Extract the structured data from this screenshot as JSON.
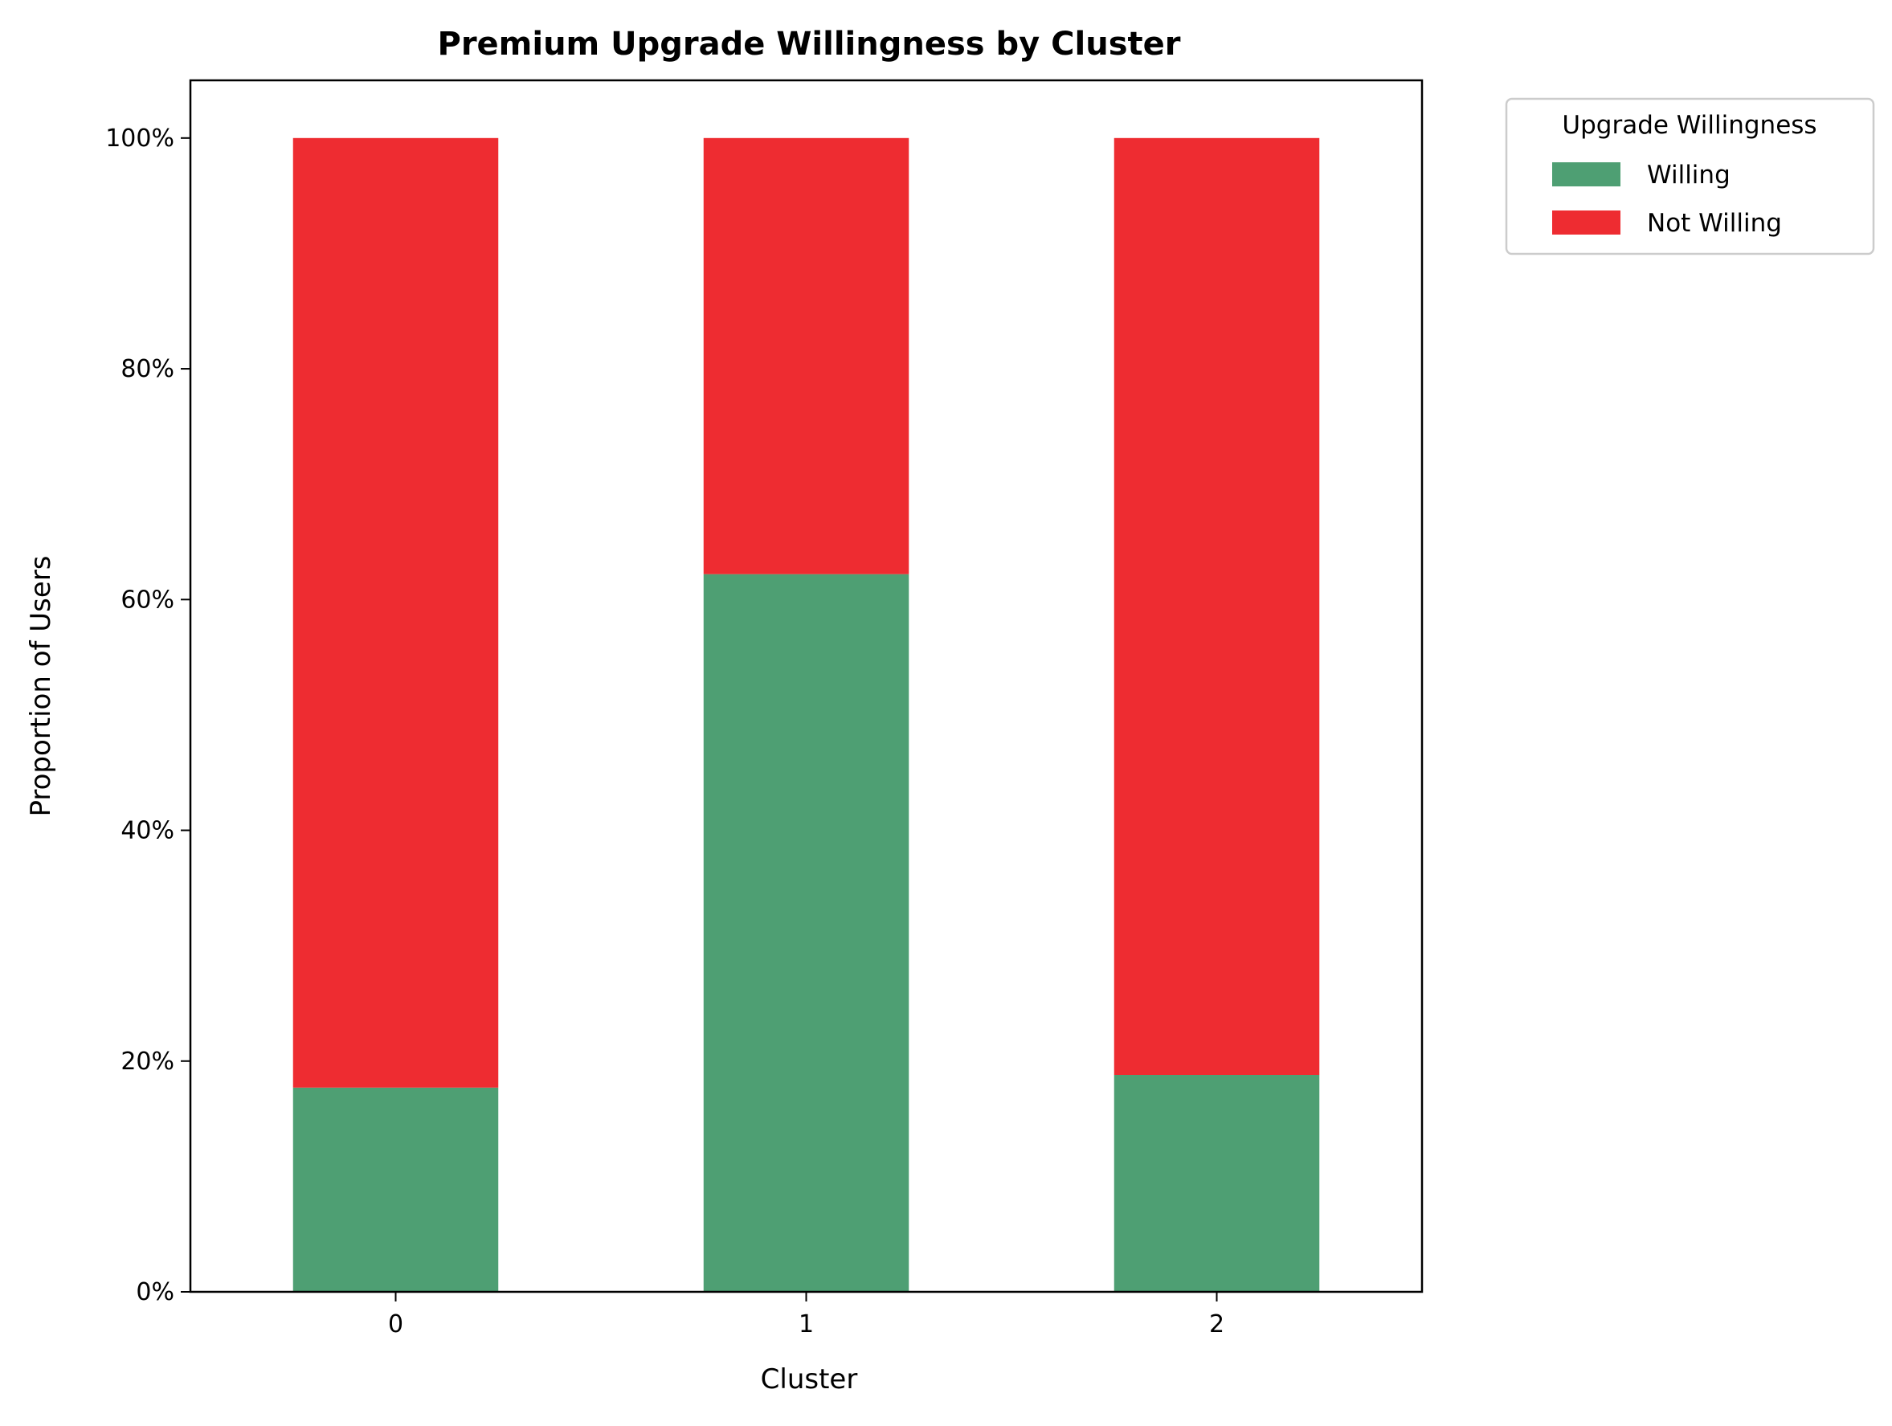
{
  "chart_data": {
    "type": "bar",
    "stacked": true,
    "title": "Premium Upgrade Willingness by Cluster",
    "xlabel": "Cluster",
    "ylabel": "Proportion of Users",
    "categories": [
      "0",
      "1",
      "2"
    ],
    "series": [
      {
        "name": "Willing",
        "values": [
          0.177,
          0.622,
          0.188
        ],
        "color": "#4e9f73"
      },
      {
        "name": "Not Willing",
        "values": [
          0.823,
          0.378,
          0.812
        ],
        "color": "#ee2c31"
      }
    ],
    "ylim": [
      0,
      1.05
    ],
    "yticks": [
      0,
      0.2,
      0.4,
      0.6,
      0.8,
      1.0
    ],
    "ytick_labels": [
      "0%",
      "20%",
      "40%",
      "60%",
      "80%",
      "100%"
    ],
    "grid": false,
    "legend": {
      "title": "Upgrade Willingness",
      "placement": "outside-top-right",
      "entries": [
        "Willing",
        "Not Willing"
      ]
    }
  }
}
